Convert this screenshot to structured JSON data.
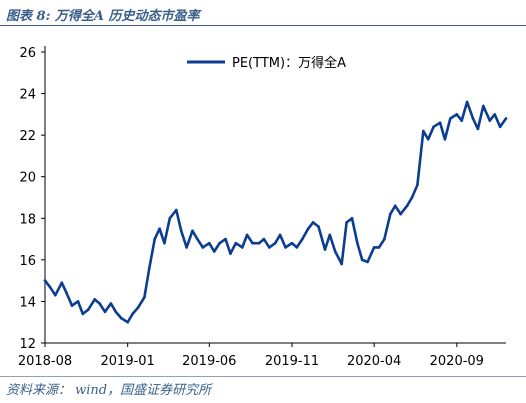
{
  "figure": {
    "title": "图表 8:  万得全A 历史动态市盈率",
    "source": "资料来源： wind，国盛证券研究所"
  },
  "colors": {
    "series": "#0b3d91",
    "axis": "#000000"
  },
  "chart_data": {
    "type": "line",
    "title": "",
    "xlabel": "",
    "ylabel": "",
    "ylim": [
      12,
      26
    ],
    "yticks": [
      12,
      14,
      16,
      18,
      20,
      22,
      24,
      26
    ],
    "xlim": [
      "2018-08",
      "2020-12"
    ],
    "xticks": [
      "2018-08",
      "2019-01",
      "2019-06",
      "2019-11",
      "2020-04",
      "2020-09"
    ],
    "grid": false,
    "legend_position": "top-right",
    "series": [
      {
        "name": "PE(TTM)：万得全A",
        "x": [
          "2018-08-01",
          "2018-08-10",
          "2018-08-20",
          "2018-09-01",
          "2018-09-10",
          "2018-09-20",
          "2018-10-01",
          "2018-10-10",
          "2018-10-20",
          "2018-11-01",
          "2018-11-10",
          "2018-11-20",
          "2018-12-01",
          "2018-12-10",
          "2018-12-20",
          "2019-01-01",
          "2019-01-10",
          "2019-01-20",
          "2019-02-01",
          "2019-02-10",
          "2019-02-20",
          "2019-03-01",
          "2019-03-10",
          "2019-03-20",
          "2019-04-01",
          "2019-04-10",
          "2019-04-20",
          "2019-05-01",
          "2019-05-10",
          "2019-05-20",
          "2019-06-01",
          "2019-06-10",
          "2019-06-20",
          "2019-07-01",
          "2019-07-10",
          "2019-07-20",
          "2019-08-01",
          "2019-08-10",
          "2019-08-20",
          "2019-09-01",
          "2019-09-10",
          "2019-09-20",
          "2019-10-01",
          "2019-10-10",
          "2019-10-20",
          "2019-11-01",
          "2019-11-10",
          "2019-11-20",
          "2019-12-01",
          "2019-12-10",
          "2019-12-20",
          "2020-01-01",
          "2020-01-10",
          "2020-01-20",
          "2020-02-01",
          "2020-02-10",
          "2020-02-20",
          "2020-03-01",
          "2020-03-10",
          "2020-03-20",
          "2020-04-01",
          "2020-04-10",
          "2020-04-20",
          "2020-05-01",
          "2020-05-10",
          "2020-05-20",
          "2020-06-01",
          "2020-06-10",
          "2020-06-20",
          "2020-07-01",
          "2020-07-10",
          "2020-07-20",
          "2020-08-01",
          "2020-08-10",
          "2020-08-20",
          "2020-09-01",
          "2020-09-10",
          "2020-09-20",
          "2020-10-01",
          "2020-10-10",
          "2020-10-20",
          "2020-11-01",
          "2020-11-10",
          "2020-11-20",
          "2020-12-01"
        ],
        "values": [
          15.0,
          14.7,
          14.3,
          14.9,
          14.4,
          13.8,
          14.0,
          13.4,
          13.6,
          14.1,
          13.9,
          13.5,
          13.9,
          13.5,
          13.2,
          13.0,
          13.4,
          13.7,
          14.2,
          15.6,
          17.0,
          17.5,
          16.8,
          18.0,
          18.4,
          17.4,
          16.6,
          17.4,
          17.0,
          16.6,
          16.8,
          16.4,
          16.8,
          17.0,
          16.3,
          16.8,
          16.6,
          17.2,
          16.8,
          16.8,
          17.0,
          16.6,
          16.8,
          17.2,
          16.6,
          16.8,
          16.6,
          17.0,
          17.5,
          17.8,
          17.6,
          16.5,
          17.2,
          16.4,
          15.8,
          17.8,
          18.0,
          16.8,
          16.0,
          15.9,
          16.6,
          16.6,
          17.0,
          18.2,
          18.6,
          18.2,
          18.6,
          19.0,
          19.6,
          22.2,
          21.8,
          22.4,
          22.6,
          21.8,
          22.8,
          23.0,
          22.7,
          23.6,
          22.8,
          22.3,
          23.4,
          22.7,
          23.0,
          22.4,
          22.8
        ]
      }
    ]
  }
}
